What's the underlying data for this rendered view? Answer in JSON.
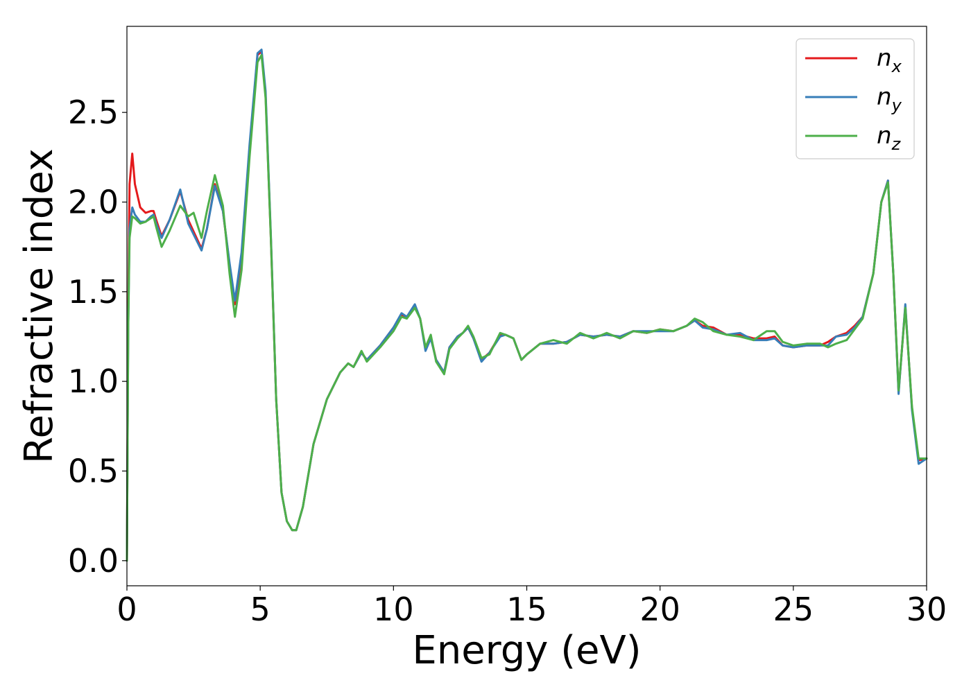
{
  "chart_data": {
    "type": "line",
    "xlabel": "Energy (eV)",
    "ylabel": "Refractive index",
    "xlim": [
      0,
      30
    ],
    "ylim": [
      -0.14,
      2.98
    ],
    "xticks": [
      0,
      5,
      10,
      15,
      20,
      25,
      30
    ],
    "xtick_labels": [
      "0",
      "5",
      "10",
      "15",
      "20",
      "25",
      "30"
    ],
    "yticks": [
      0.0,
      0.5,
      1.0,
      1.5,
      2.0,
      2.5
    ],
    "ytick_labels": [
      "0.0",
      "0.5",
      "1.0",
      "1.5",
      "2.0",
      "2.5"
    ],
    "grid": false,
    "legend_position": "top-right",
    "series": [
      {
        "name": "n_x",
        "label_main": "n",
        "label_sub": "x",
        "color": "#e41a1c",
        "x": [
          0,
          0.05,
          0.1,
          0.2,
          0.3,
          0.5,
          0.7,
          0.9,
          1.0,
          1.1,
          1.3,
          1.6,
          2.0,
          2.3,
          2.8,
          3.0,
          3.3,
          3.6,
          3.85,
          4.05,
          4.3,
          4.6,
          4.9,
          5.05,
          5.2,
          5.4,
          5.6,
          5.8,
          6.0,
          6.2,
          6.35,
          6.6,
          7.0,
          7.5,
          8.0,
          8.3,
          8.5,
          8.8,
          9.0,
          9.5,
          10.0,
          10.3,
          10.5,
          10.8,
          11.0,
          11.2,
          11.4,
          11.6,
          11.9,
          12.1,
          12.4,
          12.6,
          12.8,
          13.0,
          13.3,
          13.6,
          14.0,
          14.2,
          14.5,
          14.8,
          15.0,
          15.5,
          16.0,
          16.5,
          17.0,
          17.5,
          18.0,
          18.5,
          19.0,
          19.5,
          20.0,
          20.5,
          21.0,
          21.3,
          21.6,
          22.0,
          22.5,
          23.0,
          23.5,
          24.0,
          24.3,
          24.6,
          25.0,
          25.5,
          26.0,
          26.3,
          26.6,
          27.0,
          27.3,
          27.6,
          28.0,
          28.3,
          28.55,
          28.75,
          28.95,
          29.2,
          29.45,
          29.7,
          30.0
        ],
        "y": [
          0.0,
          1.4,
          2.1,
          2.27,
          2.1,
          1.97,
          1.94,
          1.95,
          1.95,
          1.9,
          1.81,
          1.9,
          2.06,
          1.9,
          1.74,
          1.85,
          2.1,
          1.95,
          1.65,
          1.43,
          1.7,
          2.3,
          2.82,
          2.84,
          2.6,
          1.8,
          0.9,
          0.38,
          0.22,
          0.17,
          0.17,
          0.3,
          0.65,
          0.9,
          1.05,
          1.1,
          1.08,
          1.16,
          1.12,
          1.2,
          1.3,
          1.37,
          1.36,
          1.42,
          1.35,
          1.18,
          1.25,
          1.12,
          1.05,
          1.19,
          1.25,
          1.27,
          1.3,
          1.24,
          1.12,
          1.16,
          1.26,
          1.26,
          1.24,
          1.12,
          1.15,
          1.21,
          1.21,
          1.22,
          1.26,
          1.25,
          1.26,
          1.25,
          1.28,
          1.27,
          1.29,
          1.28,
          1.31,
          1.34,
          1.31,
          1.3,
          1.26,
          1.26,
          1.24,
          1.24,
          1.25,
          1.2,
          1.19,
          1.2,
          1.2,
          1.22,
          1.25,
          1.27,
          1.31,
          1.36,
          1.6,
          2.0,
          2.12,
          1.6,
          0.94,
          1.42,
          0.85,
          0.56,
          0.57
        ]
      },
      {
        "name": "n_y",
        "label_main": "n",
        "label_sub": "y",
        "color": "#377eb8",
        "x": [
          0,
          0.05,
          0.1,
          0.2,
          0.3,
          0.5,
          0.7,
          0.9,
          1.0,
          1.1,
          1.3,
          1.6,
          2.0,
          2.3,
          2.8,
          3.0,
          3.3,
          3.6,
          3.85,
          4.05,
          4.3,
          4.6,
          4.9,
          5.05,
          5.2,
          5.4,
          5.6,
          5.8,
          6.0,
          6.2,
          6.35,
          6.6,
          7.0,
          7.5,
          8.0,
          8.3,
          8.5,
          8.8,
          9.0,
          9.5,
          10.0,
          10.3,
          10.5,
          10.8,
          11.0,
          11.2,
          11.4,
          11.6,
          11.9,
          12.1,
          12.4,
          12.6,
          12.8,
          13.0,
          13.3,
          13.6,
          14.0,
          14.2,
          14.5,
          14.8,
          15.0,
          15.5,
          16.0,
          16.5,
          17.0,
          17.5,
          18.0,
          18.5,
          19.0,
          19.5,
          20.0,
          20.5,
          21.0,
          21.3,
          21.6,
          22.0,
          22.5,
          23.0,
          23.5,
          24.0,
          24.3,
          24.6,
          25.0,
          25.5,
          26.0,
          26.3,
          26.6,
          27.0,
          27.3,
          27.6,
          28.0,
          28.3,
          28.55,
          28.75,
          28.95,
          29.2,
          29.45,
          29.7,
          30.0
        ],
        "y": [
          0.0,
          1.3,
          1.85,
          1.97,
          1.93,
          1.89,
          1.89,
          1.92,
          1.93,
          1.88,
          1.8,
          1.9,
          2.07,
          1.88,
          1.73,
          1.85,
          2.09,
          1.95,
          1.66,
          1.45,
          1.72,
          2.32,
          2.83,
          2.85,
          2.62,
          1.82,
          0.9,
          0.38,
          0.22,
          0.17,
          0.17,
          0.3,
          0.65,
          0.9,
          1.05,
          1.1,
          1.08,
          1.16,
          1.12,
          1.2,
          1.3,
          1.38,
          1.36,
          1.43,
          1.35,
          1.17,
          1.24,
          1.12,
          1.05,
          1.19,
          1.25,
          1.27,
          1.3,
          1.24,
          1.11,
          1.16,
          1.25,
          1.26,
          1.24,
          1.12,
          1.15,
          1.21,
          1.21,
          1.22,
          1.26,
          1.25,
          1.26,
          1.25,
          1.28,
          1.28,
          1.28,
          1.28,
          1.31,
          1.34,
          1.3,
          1.29,
          1.26,
          1.27,
          1.23,
          1.23,
          1.24,
          1.2,
          1.19,
          1.2,
          1.2,
          1.2,
          1.25,
          1.26,
          1.3,
          1.36,
          1.6,
          2.0,
          2.12,
          1.6,
          0.93,
          1.43,
          0.84,
          0.54,
          0.57
        ]
      },
      {
        "name": "n_z",
        "label_main": "n",
        "label_sub": "z",
        "color": "#4daf4a",
        "x": [
          0,
          0.05,
          0.1,
          0.2,
          0.3,
          0.5,
          0.7,
          0.9,
          1.0,
          1.1,
          1.3,
          1.6,
          2.0,
          2.3,
          2.5,
          2.8,
          3.0,
          3.3,
          3.6,
          3.85,
          4.05,
          4.3,
          4.6,
          4.9,
          5.05,
          5.2,
          5.4,
          5.6,
          5.8,
          6.0,
          6.2,
          6.35,
          6.6,
          7.0,
          7.5,
          8.0,
          8.3,
          8.5,
          8.8,
          9.0,
          9.5,
          10.0,
          10.3,
          10.5,
          10.8,
          11.0,
          11.2,
          11.4,
          11.6,
          11.9,
          12.1,
          12.4,
          12.6,
          12.8,
          13.0,
          13.3,
          13.6,
          14.0,
          14.2,
          14.5,
          14.8,
          15.0,
          15.5,
          16.0,
          16.5,
          17.0,
          17.5,
          18.0,
          18.5,
          19.0,
          19.5,
          20.0,
          20.5,
          21.0,
          21.3,
          21.6,
          22.0,
          22.5,
          23.0,
          23.5,
          24.0,
          24.3,
          24.6,
          25.0,
          25.5,
          26.0,
          26.3,
          26.6,
          27.0,
          27.3,
          27.6,
          28.0,
          28.3,
          28.55,
          28.75,
          28.95,
          29.2,
          29.45,
          29.7,
          30.0
        ],
        "y": [
          0.0,
          1.3,
          1.8,
          1.92,
          1.91,
          1.88,
          1.89,
          1.91,
          1.92,
          1.86,
          1.75,
          1.84,
          1.98,
          1.92,
          1.94,
          1.8,
          1.95,
          2.15,
          1.98,
          1.6,
          1.36,
          1.62,
          2.25,
          2.78,
          2.82,
          2.58,
          1.8,
          0.9,
          0.38,
          0.22,
          0.17,
          0.17,
          0.3,
          0.65,
          0.9,
          1.05,
          1.1,
          1.08,
          1.17,
          1.11,
          1.19,
          1.28,
          1.36,
          1.35,
          1.41,
          1.35,
          1.19,
          1.26,
          1.11,
          1.04,
          1.18,
          1.24,
          1.27,
          1.31,
          1.25,
          1.13,
          1.15,
          1.27,
          1.26,
          1.24,
          1.12,
          1.15,
          1.21,
          1.23,
          1.21,
          1.27,
          1.24,
          1.27,
          1.24,
          1.28,
          1.27,
          1.29,
          1.28,
          1.31,
          1.35,
          1.33,
          1.28,
          1.26,
          1.25,
          1.23,
          1.28,
          1.28,
          1.22,
          1.2,
          1.21,
          1.21,
          1.19,
          1.21,
          1.23,
          1.29,
          1.35,
          1.6,
          2.0,
          2.11,
          1.6,
          0.95,
          1.41,
          0.86,
          0.57,
          0.57
        ]
      }
    ]
  }
}
